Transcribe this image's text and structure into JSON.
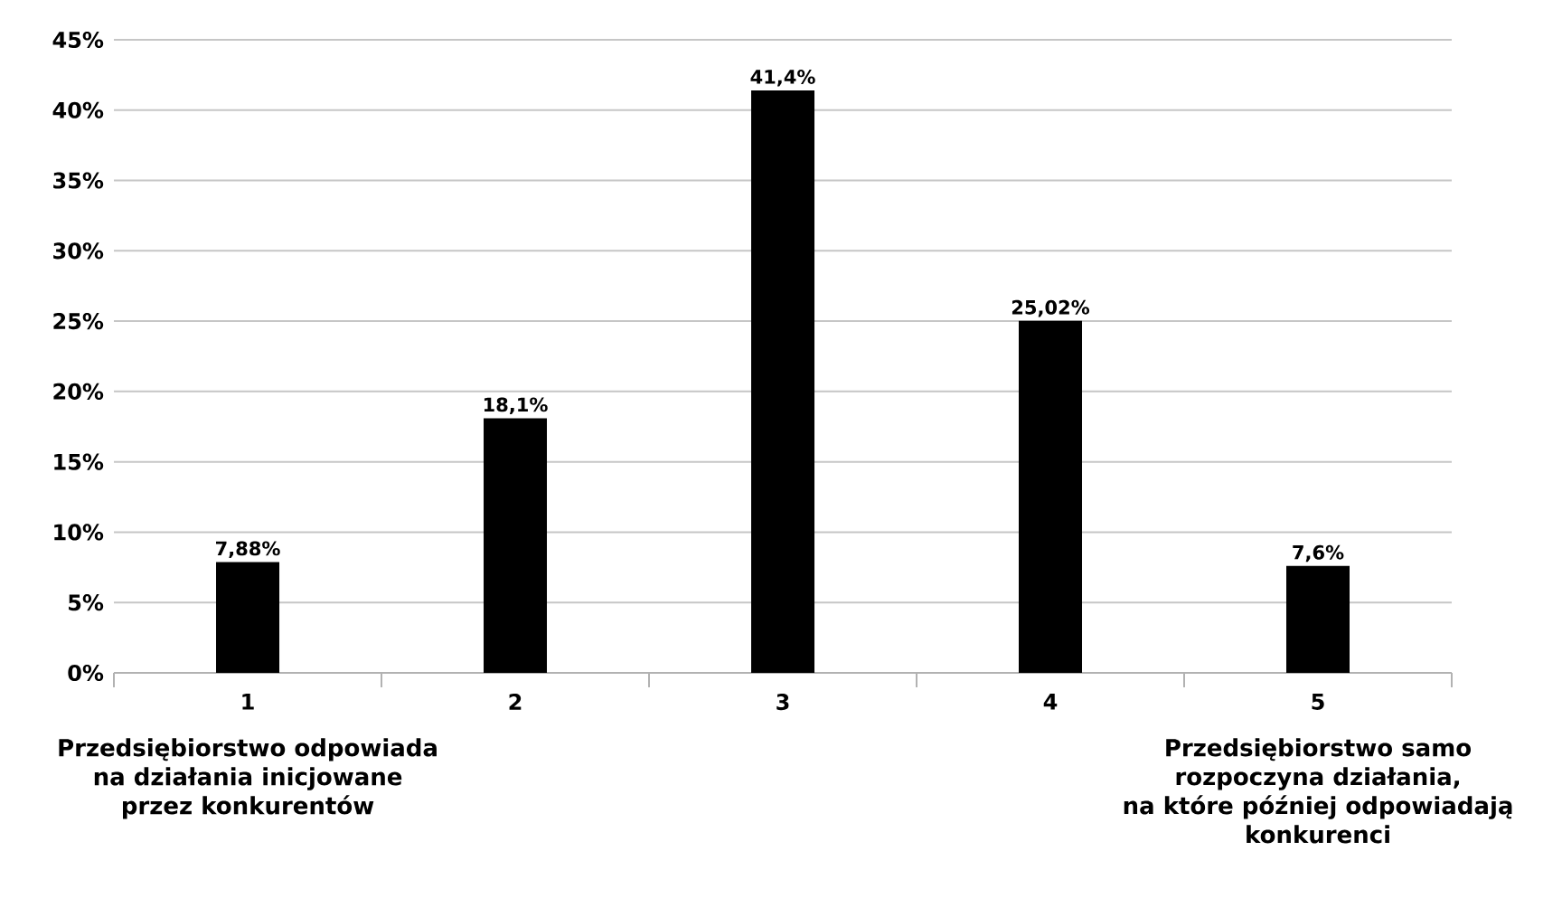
{
  "chart_data": {
    "type": "bar",
    "categories": [
      "1",
      "2",
      "3",
      "4",
      "5"
    ],
    "values": [
      7.88,
      18.1,
      41.4,
      25.02,
      7.6
    ],
    "value_labels": [
      "7,88%",
      "18,1%",
      "41,4%",
      "25,02%",
      "7,6%"
    ],
    "color": "#000000",
    "ylim": [
      0,
      45
    ],
    "yticks": [
      {
        "value": 0,
        "label": "0%"
      },
      {
        "value": 5,
        "label": "5%"
      },
      {
        "value": 10,
        "label": "10%"
      },
      {
        "value": 15,
        "label": "15%"
      },
      {
        "value": 20,
        "label": "20%"
      },
      {
        "value": 25,
        "label": "25%"
      },
      {
        "value": 30,
        "label": "30%"
      },
      {
        "value": 35,
        "label": "35%"
      },
      {
        "value": 40,
        "label": "40%"
      },
      {
        "value": 45,
        "label": "45%"
      }
    ],
    "grid": "y",
    "annotations": [
      "Przedsiębiorstwo odpowiada na działania inicjowane przez konkurentów",
      "Przedsiębiorstwo samo rozpoczyna działania, na które później odpowiadają konkurenci"
    ]
  }
}
